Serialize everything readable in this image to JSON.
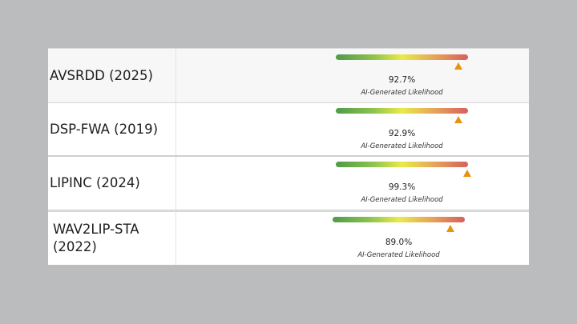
{
  "rows": [
    {
      "name": "AVSRDD (2025)",
      "score": "92.7%",
      "likelihood": 0.927,
      "caption": "AI-Generated Likelihood"
    },
    {
      "name": "DSP-FWA (2019)",
      "score": "92.9%",
      "likelihood": 0.929,
      "caption": "AI-Generated Likelihood"
    },
    {
      "name": "LIPINC (2024)",
      "score": "99.3%",
      "likelihood": 0.993,
      "caption": "AI-Generated Likelihood"
    },
    {
      "name": "WAV2LIP-STA (2022)",
      "score": "89.0%",
      "likelihood": 0.89,
      "caption": "AI-Generated Likelihood"
    }
  ],
  "colors": {
    "marker": "#e8920f",
    "gradient": [
      "#4f9a4a",
      "#e9ea4a",
      "#d6605e"
    ]
  }
}
